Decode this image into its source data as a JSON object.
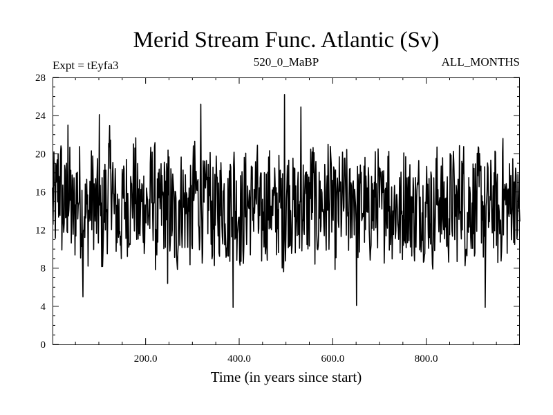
{
  "chart_data": {
    "type": "line",
    "title": "Merid Stream Func. Atlantic (Sv)",
    "subtitle_left": "Expt = tEyfa3",
    "subtitle_center": "520_0_MaBP",
    "subtitle_right": "ALL_MONTHS",
    "xlabel": "Time (in years since start)",
    "ylabel": "",
    "xlim": [
      1,
      1000
    ],
    "ylim": [
      0,
      28
    ],
    "xticks": [
      "200.0",
      "400.0",
      "600.0",
      "800.0"
    ],
    "yticks": [
      "0",
      "4",
      "8",
      "12",
      "16",
      "20",
      "24",
      "28"
    ],
    "grid": false,
    "line_color": "#000000",
    "series_stats": {
      "mean": 14.5,
      "min": 3.9,
      "max": 26.2
    },
    "series_values": [
      15.2,
      20.9,
      13.6,
      17.3,
      12.1,
      18.4,
      14.0,
      11.6,
      16.8,
      13.2,
      9.4,
      15.7,
      23.0,
      12.6,
      10.8,
      16.3,
      14.9,
      19.8,
      12.4,
      15.1,
      13.7,
      18.6,
      10.2,
      14.8,
      17.1,
      12.9,
      8.6,
      16.5,
      14.2,
      11.3,
      19.1,
      15.6,
      13.0,
      17.8,
      10.7,
      14.4,
      16.2,
      12.0,
      20.6,
      13.5,
      11.1,
      15.9,
      14.6,
      18.2,
      9.9,
      13.8,
      16.7,
      12.5,
      15.3,
      10.4,
      17.6,
      13.9,
      11.8,
      16.0,
      14.1,
      19.4,
      12.2,
      15.5,
      13.3,
      17.0,
      10.9,
      14.7,
      16.4,
      12.7,
      18.8,
      13.1,
      15.8,
      11.4,
      14.3,
      16.9,
      12.8,
      20.1,
      13.6,
      15.0,
      11.0,
      17.4,
      14.5,
      12.3,
      16.1,
      13.4,
      15.4,
      10.6,
      18.0,
      14.0,
      12.1,
      16.6,
      13.0,
      19.2,
      11.7,
      15.2,
      14.8,
      17.5,
      12.4,
      13.7,
      16.3,
      10.3,
      15.6,
      14.2,
      18.5,
      12.9
    ]
  }
}
